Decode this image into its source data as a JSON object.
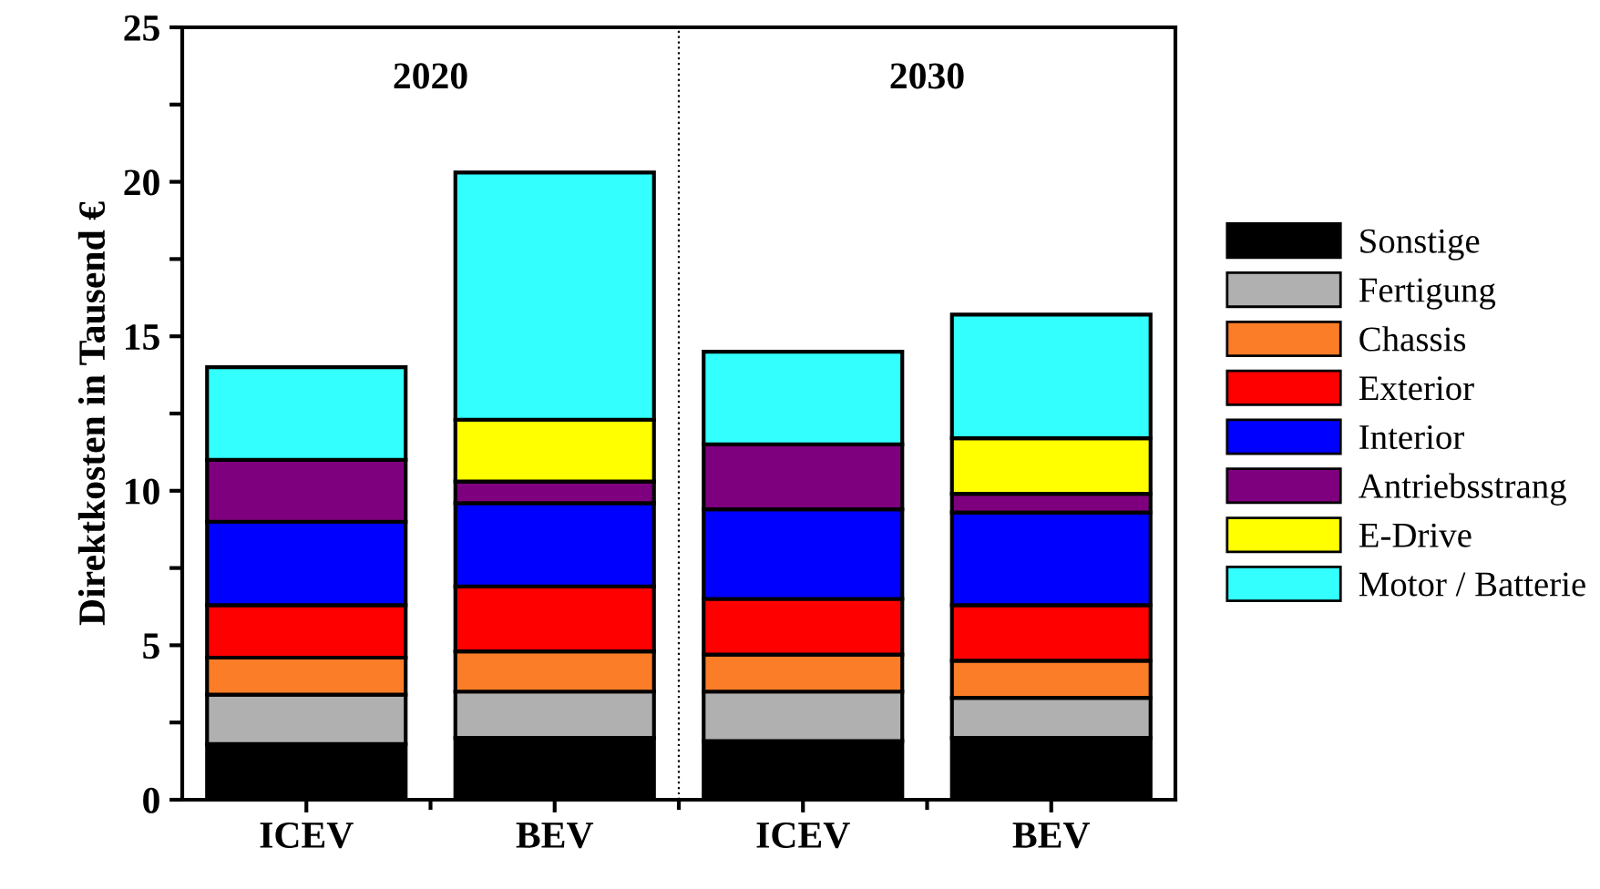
{
  "chart_data": {
    "type": "bar",
    "stacked": true,
    "ylabel": "Direktkosten in Tausend €",
    "categories": [
      "ICEV",
      "BEV",
      "ICEV",
      "BEV"
    ],
    "series": [
      {
        "name": "Sonstige",
        "color": "#000000",
        "values": [
          1.8,
          2.0,
          1.9,
          2.0
        ]
      },
      {
        "name": "Fertigung",
        "color": "#b0b0b0",
        "values": [
          1.6,
          1.5,
          1.6,
          1.3
        ]
      },
      {
        "name": "Chassis",
        "color": "#fb7d28",
        "values": [
          1.2,
          1.3,
          1.2,
          1.2
        ]
      },
      {
        "name": "Exterior",
        "color": "#ff0000",
        "values": [
          1.7,
          2.1,
          1.8,
          1.8
        ]
      },
      {
        "name": "Interior",
        "color": "#0000ff",
        "values": [
          2.7,
          2.7,
          2.9,
          3.0
        ]
      },
      {
        "name": "Antriebsstrang",
        "color": "#7f007f",
        "values": [
          2.0,
          0.7,
          2.1,
          0.6
        ]
      },
      {
        "name": "E-Drive",
        "color": "#ffff00",
        "values": [
          0,
          2.0,
          0,
          1.8
        ]
      },
      {
        "name": "Motor / Batterie",
        "color": "#33ffff",
        "values": [
          3.0,
          8.0,
          3.0,
          4.0
        ]
      }
    ],
    "ylim": [
      0,
      25
    ],
    "yticks": [
      0,
      {
        "value": 2.5,
        "label": null
      },
      5,
      {
        "value": 7.5,
        "label": null
      },
      10,
      {
        "value": 12.5,
        "label": null
      },
      15,
      {
        "value": 17.5,
        "label": null
      },
      20,
      {
        "value": 22.5,
        "label": null
      },
      25
    ],
    "annotations": [
      "2020",
      "2030"
    ],
    "grid": false,
    "legend": "right"
  }
}
